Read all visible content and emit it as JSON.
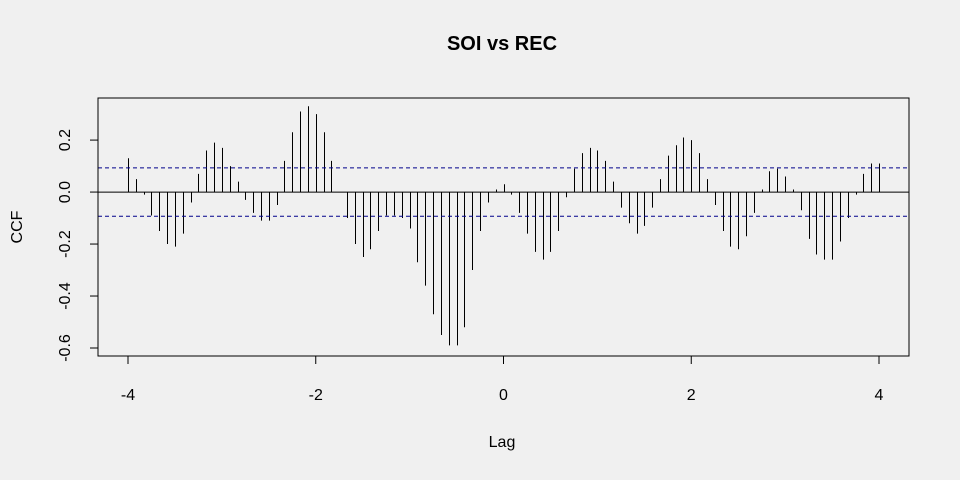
{
  "chart_data": {
    "type": "bar",
    "title": "SOI vs REC",
    "xlabel": "Lag",
    "ylabel": "CCF",
    "xlim": [
      -4.0,
      4.0
    ],
    "ylim": [
      -0.6,
      0.335
    ],
    "x_ticks": [
      -4,
      -2,
      0,
      2,
      4
    ],
    "x_tick_labels": [
      "-4",
      "-2",
      "0",
      "2",
      "4"
    ],
    "y_ticks": [
      -0.6,
      -0.4,
      -0.2,
      0.0,
      0.2
    ],
    "y_tick_labels": [
      "-0.6",
      "-0.4",
      "-0.2",
      "0.0",
      "0.2"
    ],
    "grid": false,
    "series": [
      {
        "x": [
          -4.0,
          -3.917,
          -3.833,
          -3.75,
          -3.667,
          -3.583,
          -3.5,
          -3.417,
          -3.333,
          -3.25,
          -3.167,
          -3.083,
          -3.0,
          -2.917,
          -2.833,
          -2.75,
          -2.667,
          -2.583,
          -2.5,
          -2.417,
          -2.333,
          -2.25,
          -2.167,
          -2.083,
          -2.0,
          -1.917,
          -1.833,
          -1.75,
          -1.667,
          -1.583,
          -1.5,
          -1.417,
          -1.333,
          -1.25,
          -1.167,
          -1.083,
          -1.0,
          -0.917,
          -0.833,
          -0.75,
          -0.667,
          -0.583,
          -0.5,
          -0.417,
          -0.333,
          -0.25,
          -0.167,
          -0.083,
          0.0,
          0.083,
          0.167,
          0.25,
          0.333,
          0.417,
          0.5,
          0.583,
          0.667,
          0.75,
          0.833,
          0.917,
          1.0,
          1.083,
          1.167,
          1.25,
          1.333,
          1.417,
          1.5,
          1.583,
          1.667,
          1.75,
          1.833,
          1.917,
          2.0,
          2.083,
          2.167,
          2.25,
          2.333,
          2.417,
          2.5,
          2.583,
          2.667,
          2.75,
          2.833,
          2.917,
          3.0,
          3.083,
          3.167,
          3.25,
          3.333,
          3.417,
          3.5,
          3.583,
          3.667,
          3.75,
          3.833,
          3.917,
          4.0
        ],
        "values": [
          0.13,
          0.05,
          -0.01,
          -0.09,
          -0.15,
          -0.2,
          -0.21,
          -0.16,
          -0.04,
          0.07,
          0.16,
          0.19,
          0.17,
          0.1,
          0.04,
          -0.03,
          -0.08,
          -0.11,
          -0.11,
          -0.05,
          0.12,
          0.23,
          0.31,
          0.33,
          0.3,
          0.23,
          0.12,
          0.0,
          -0.1,
          -0.2,
          -0.25,
          -0.22,
          -0.15,
          -0.09,
          -0.09,
          -0.1,
          -0.14,
          -0.27,
          -0.36,
          -0.47,
          -0.55,
          -0.59,
          -0.59,
          -0.52,
          -0.3,
          -0.15,
          -0.04,
          0.01,
          0.03,
          -0.01,
          -0.08,
          -0.16,
          -0.23,
          -0.26,
          -0.23,
          -0.15,
          -0.02,
          0.09,
          0.15,
          0.17,
          0.16,
          0.12,
          0.04,
          -0.06,
          -0.12,
          -0.16,
          -0.13,
          -0.06,
          0.05,
          0.14,
          0.18,
          0.21,
          0.2,
          0.15,
          0.05,
          -0.05,
          -0.15,
          -0.21,
          -0.22,
          -0.17,
          -0.08,
          0.01,
          0.08,
          0.09,
          0.06,
          0.01,
          -0.07,
          -0.18,
          -0.24,
          -0.26,
          -0.26,
          -0.19,
          -0.1,
          -0.01,
          0.07,
          0.11,
          0.11
        ]
      }
    ],
    "zero_line": 0.0,
    "confidence_band": 0.093,
    "colors": {
      "bars": "#000000",
      "confidence": "#00008b",
      "background": "#f0f0f0"
    }
  }
}
